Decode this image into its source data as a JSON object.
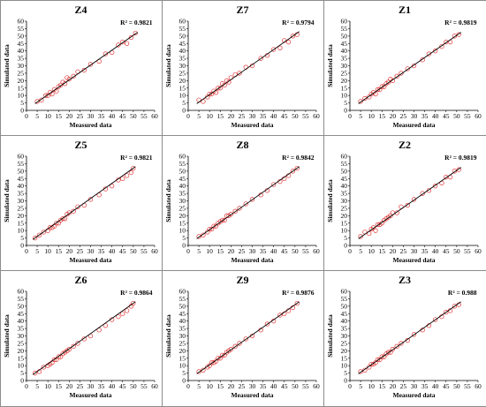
{
  "chart_data": [
    {
      "type": "scatter",
      "title": "Z4",
      "r2_label": "R² = 0.9821",
      "xlabel": "Measured data",
      "ylabel": "Simulated data",
      "xlim": [
        0,
        60
      ],
      "ylim": [
        0,
        60
      ],
      "xticks": [
        0,
        5,
        10,
        15,
        20,
        25,
        30,
        35,
        40,
        45,
        50,
        55,
        60
      ],
      "yticks": [
        0,
        5,
        10,
        15,
        20,
        25,
        30,
        35,
        40,
        45,
        50,
        55,
        60
      ],
      "trendline": {
        "x": [
          4,
          52
        ],
        "y": [
          4.5,
          52.5
        ]
      },
      "x": [
        5,
        7,
        9,
        10,
        11,
        12,
        13,
        14,
        15,
        16,
        17,
        18,
        19,
        20,
        22,
        24,
        27,
        30,
        34,
        37,
        40,
        43,
        45,
        47,
        49,
        51
      ],
      "y": [
        6,
        7,
        10,
        10,
        12,
        11,
        14,
        13,
        16,
        17,
        19,
        18,
        22,
        21,
        23,
        26,
        27,
        31,
        33,
        38,
        39,
        44,
        46,
        45,
        49,
        52
      ]
    },
    {
      "type": "scatter",
      "title": "Z7",
      "r2_label": "R² = 0.9794",
      "xlabel": "Measured data",
      "ylabel": "Simulated data",
      "xlim": [
        0,
        60
      ],
      "ylim": [
        0,
        60
      ],
      "xticks": [
        0,
        5,
        10,
        15,
        20,
        25,
        30,
        35,
        40,
        45,
        50,
        55,
        60
      ],
      "yticks": [
        0,
        5,
        10,
        15,
        20,
        25,
        30,
        35,
        40,
        45,
        50,
        55,
        60
      ],
      "trendline": {
        "x": [
          4,
          52
        ],
        "y": [
          4.5,
          53
        ]
      },
      "x": [
        5,
        7,
        9,
        10,
        11,
        12,
        13,
        14,
        15,
        16,
        17,
        18,
        19,
        20,
        22,
        24,
        27,
        30,
        34,
        37,
        40,
        43,
        45,
        47,
        49,
        51
      ],
      "y": [
        7,
        6,
        9,
        11,
        11,
        13,
        12,
        15,
        15,
        18,
        17,
        20,
        19,
        22,
        24,
        25,
        29,
        30,
        35,
        37,
        41,
        42,
        47,
        46,
        50,
        51
      ]
    },
    {
      "type": "scatter",
      "title": "Z1",
      "r2_label": "R² = 0.9819",
      "xlabel": "Measured data",
      "ylabel": "Simulated data",
      "xlim": [
        0,
        60
      ],
      "ylim": [
        0,
        60
      ],
      "xticks": [
        0,
        5,
        10,
        15,
        20,
        25,
        30,
        35,
        40,
        45,
        50,
        55,
        60
      ],
      "yticks": [
        0,
        5,
        10,
        15,
        20,
        25,
        30,
        35,
        40,
        45,
        50,
        55,
        60
      ],
      "trendline": {
        "x": [
          4,
          52
        ],
        "y": [
          4.5,
          52.5
        ]
      },
      "x": [
        5,
        7,
        9,
        10,
        11,
        12,
        13,
        14,
        15,
        16,
        17,
        18,
        19,
        20,
        22,
        24,
        27,
        30,
        34,
        37,
        40,
        43,
        45,
        47,
        49,
        51
      ],
      "y": [
        6,
        8,
        9,
        11,
        12,
        11,
        14,
        14,
        16,
        16,
        18,
        19,
        21,
        20,
        23,
        25,
        28,
        30,
        34,
        38,
        40,
        43,
        46,
        46,
        50,
        51
      ]
    },
    {
      "type": "scatter",
      "title": "Z5",
      "r2_label": "R² = 0.9821",
      "xlabel": "Measured data",
      "ylabel": "Simulated data",
      "xlim": [
        0,
        60
      ],
      "ylim": [
        0,
        60
      ],
      "xticks": [
        0,
        5,
        10,
        15,
        20,
        25,
        30,
        35,
        40,
        45,
        50,
        55,
        60
      ],
      "yticks": [
        0,
        5,
        10,
        15,
        20,
        25,
        30,
        35,
        40,
        45,
        50,
        55,
        60
      ],
      "trendline": {
        "x": [
          3,
          51
        ],
        "y": [
          4,
          53
        ]
      },
      "x": [
        4,
        6,
        8,
        10,
        11,
        12,
        13,
        14,
        15,
        16,
        17,
        18,
        19,
        20,
        22,
        24,
        27,
        30,
        34,
        37,
        40,
        43,
        45,
        47,
        49,
        50
      ],
      "y": [
        5,
        7,
        9,
        10,
        12,
        12,
        13,
        15,
        15,
        17,
        18,
        18,
        21,
        22,
        23,
        26,
        27,
        31,
        34,
        38,
        40,
        44,
        45,
        47,
        49,
        52
      ]
    },
    {
      "type": "scatter",
      "title": "Z8",
      "r2_label": "R² = 0.9842",
      "xlabel": "Measured data",
      "ylabel": "Simulated data",
      "xlim": [
        0,
        60
      ],
      "ylim": [
        0,
        60
      ],
      "xticks": [
        0,
        5,
        10,
        15,
        20,
        25,
        30,
        35,
        40,
        45,
        50,
        55,
        60
      ],
      "yticks": [
        0,
        5,
        10,
        15,
        20,
        25,
        30,
        35,
        40,
        45,
        50,
        55,
        60
      ],
      "trendline": {
        "x": [
          4,
          52
        ],
        "y": [
          4.5,
          53
        ]
      },
      "x": [
        5,
        7,
        9,
        10,
        11,
        12,
        13,
        14,
        15,
        16,
        17,
        18,
        19,
        20,
        22,
        24,
        27,
        30,
        34,
        37,
        40,
        43,
        45,
        47,
        49,
        51
      ],
      "y": [
        6,
        7,
        9,
        11,
        11,
        13,
        13,
        15,
        16,
        17,
        17,
        20,
        20,
        21,
        23,
        25,
        28,
        31,
        34,
        37,
        41,
        43,
        45,
        47,
        50,
        52
      ]
    },
    {
      "type": "scatter",
      "title": "Z2",
      "r2_label": "R² = 0.9819",
      "xlabel": "Measured data",
      "ylabel": "Simulated data",
      "xlim": [
        0,
        60
      ],
      "ylim": [
        0,
        60
      ],
      "xticks": [
        0,
        5,
        10,
        15,
        20,
        25,
        30,
        35,
        40,
        45,
        50,
        55,
        60
      ],
      "yticks": [
        0,
        5,
        10,
        15,
        20,
        25,
        30,
        35,
        40,
        45,
        50,
        55,
        60
      ],
      "trendline": {
        "x": [
          4,
          52
        ],
        "y": [
          4.5,
          52.5
        ]
      },
      "x": [
        5,
        7,
        9,
        10,
        11,
        12,
        13,
        14,
        15,
        16,
        17,
        18,
        19,
        20,
        22,
        24,
        27,
        30,
        34,
        37,
        40,
        43,
        45,
        47,
        49,
        51
      ],
      "y": [
        6,
        9,
        8,
        11,
        12,
        10,
        14,
        14,
        15,
        17,
        18,
        19,
        20,
        22,
        22,
        26,
        27,
        31,
        35,
        37,
        40,
        42,
        46,
        46,
        50,
        51
      ]
    },
    {
      "type": "scatter",
      "title": "Z6",
      "r2_label": "R² = 0.9864",
      "xlabel": "Measured data",
      "ylabel": "Simulated data",
      "xlim": [
        0,
        60
      ],
      "ylim": [
        0,
        60
      ],
      "xticks": [
        0,
        5,
        10,
        15,
        20,
        25,
        30,
        35,
        40,
        45,
        50,
        55,
        60
      ],
      "yticks": [
        0,
        5,
        10,
        15,
        20,
        25,
        30,
        35,
        40,
        45,
        50,
        55,
        60
      ],
      "trendline": {
        "x": [
          3,
          51
        ],
        "y": [
          4,
          53
        ]
      },
      "x": [
        4,
        6,
        8,
        10,
        11,
        12,
        13,
        14,
        15,
        16,
        17,
        18,
        19,
        20,
        22,
        24,
        27,
        30,
        34,
        37,
        40,
        43,
        45,
        47,
        49,
        50
      ],
      "y": [
        5,
        6,
        9,
        10,
        11,
        12,
        14,
        14,
        16,
        16,
        18,
        19,
        20,
        21,
        23,
        25,
        28,
        30,
        34,
        37,
        41,
        43,
        45,
        47,
        50,
        52
      ]
    },
    {
      "type": "scatter",
      "title": "Z9",
      "r2_label": "R² = 0.9876",
      "xlabel": "Measured data",
      "ylabel": "Simulated data",
      "xlim": [
        0,
        60
      ],
      "ylim": [
        0,
        60
      ],
      "xticks": [
        0,
        5,
        10,
        15,
        20,
        25,
        30,
        35,
        40,
        45,
        50,
        55,
        60
      ],
      "yticks": [
        0,
        5,
        10,
        15,
        20,
        25,
        30,
        35,
        40,
        45,
        50,
        55,
        60
      ],
      "trendline": {
        "x": [
          4,
          52
        ],
        "y": [
          4.5,
          53
        ]
      },
      "x": [
        5,
        7,
        9,
        10,
        11,
        12,
        13,
        14,
        15,
        16,
        17,
        18,
        19,
        20,
        22,
        24,
        27,
        30,
        34,
        37,
        40,
        43,
        45,
        47,
        49,
        51
      ],
      "y": [
        6,
        7,
        9,
        10,
        12,
        12,
        13,
        15,
        15,
        17,
        17,
        19,
        20,
        21,
        23,
        25,
        28,
        30,
        34,
        38,
        40,
        44,
        45,
        47,
        49,
        52
      ]
    },
    {
      "type": "scatter",
      "title": "Z3",
      "r2_label": "R² = 0.988",
      "xlabel": "Measured data",
      "ylabel": "Simulated data",
      "xlim": [
        0,
        60
      ],
      "ylim": [
        0,
        60
      ],
      "xticks": [
        0,
        5,
        10,
        15,
        20,
        25,
        30,
        35,
        40,
        45,
        50,
        55,
        60
      ],
      "yticks": [
        0,
        5,
        10,
        15,
        20,
        25,
        30,
        35,
        40,
        45,
        50,
        55,
        60
      ],
      "trendline": {
        "x": [
          4,
          52
        ],
        "y": [
          4.5,
          53
        ]
      },
      "x": [
        5,
        7,
        9,
        10,
        11,
        12,
        13,
        14,
        15,
        16,
        17,
        18,
        19,
        20,
        22,
        24,
        27,
        30,
        34,
        37,
        40,
        43,
        45,
        47,
        49,
        51
      ],
      "y": [
        6,
        7,
        9,
        11,
        11,
        12,
        14,
        14,
        16,
        16,
        18,
        19,
        19,
        21,
        23,
        25,
        27,
        31,
        34,
        37,
        41,
        43,
        46,
        47,
        50,
        51
      ]
    }
  ],
  "colors": {
    "marker": "#e03030",
    "trendline": "#000000",
    "axis": "#000000",
    "border": "#8c8c8c"
  }
}
